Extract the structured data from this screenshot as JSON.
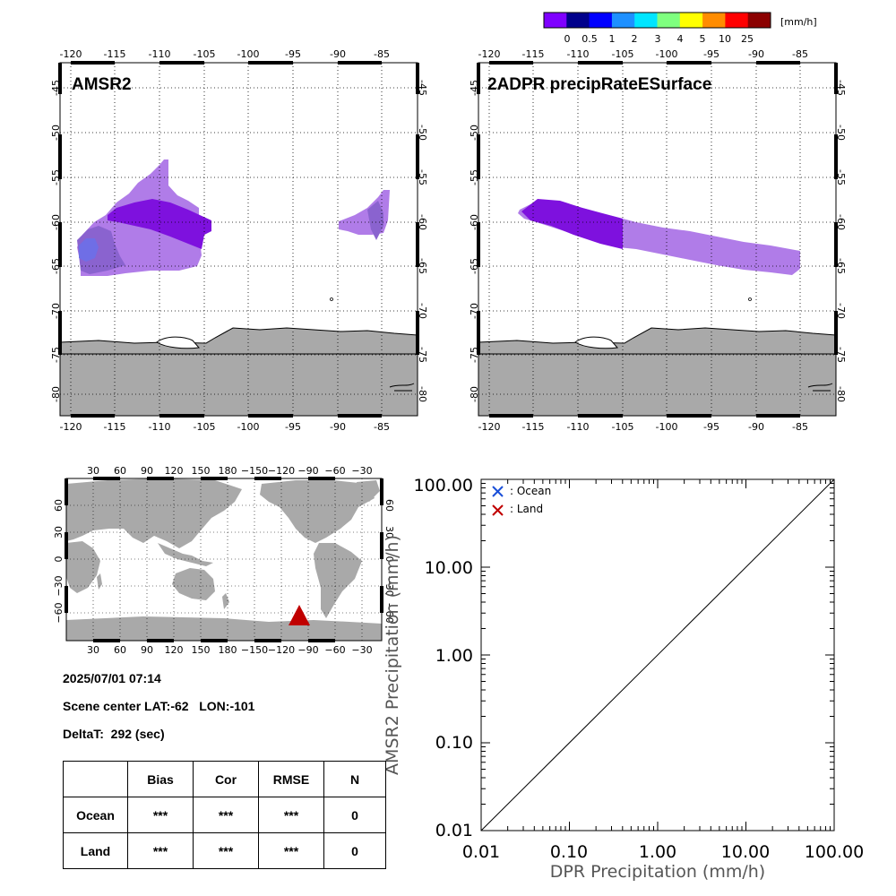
{
  "colorbar": {
    "unit": "[mm/h]",
    "colors": [
      "#7f00ff",
      "#00008b",
      "#0000ff",
      "#1e90ff",
      "#00e5ff",
      "#7fff7f",
      "#ffff00",
      "#ff8c00",
      "#ff0000",
      "#8b0000"
    ],
    "labels": [
      "0",
      "0.5",
      "1",
      "2",
      "3",
      "4",
      "5",
      "10",
      "25"
    ]
  },
  "maps": {
    "lon_ticks": [
      "-120",
      "-115",
      "-110",
      "-105",
      "-100",
      "-95",
      "-90",
      "-85"
    ],
    "lat_ticks": [
      "-45",
      "-50",
      "-55",
      "-60",
      "-65",
      "-70",
      "-75",
      "-80"
    ],
    "land_color": "#a9a9a9",
    "left_title": "AMSR2",
    "right_title": "2ADPR precipRateESurface"
  },
  "world": {
    "top_ticks": [
      "30",
      "60",
      "90",
      "120",
      "150",
      "180",
      "−150",
      "−120",
      "−90",
      "−60",
      "−30"
    ],
    "bottom_ticks": [
      "30",
      "60",
      "90",
      "120",
      "150",
      "180",
      "−150",
      "−120",
      "−90",
      "−60",
      "−30"
    ],
    "left_ticks": [
      "60",
      "30",
      "0",
      "−30",
      "−60"
    ],
    "right_ticks": [
      "60",
      "30",
      "0",
      "−30",
      "−60"
    ],
    "marker_color": "#c00000"
  },
  "info": {
    "datetime": "2025/07/01 07:14",
    "scene_center": "Scene center LAT:-62   LON:-101",
    "deltat": "DeltaT:  292 (sec)"
  },
  "stats_table": {
    "headers": [
      "Bias",
      "Cor",
      "RMSE",
      "N"
    ],
    "rows": [
      {
        "label": "Ocean",
        "bias": "***",
        "cor": "***",
        "rmse": "***",
        "n": "0"
      },
      {
        "label": "Land",
        "bias": "***",
        "cor": "***",
        "rmse": "***",
        "n": "0"
      }
    ]
  },
  "chart_data": {
    "type": "scatter",
    "xlabel": "DPR Precipitation (mm/h)",
    "ylabel": "AMSR2 Precipitation (mm/h)",
    "x_ticks": [
      "0.01",
      "0.10",
      "1.00",
      "10.00",
      "100.00"
    ],
    "y_ticks": [
      "0.01",
      "0.10",
      "1.00",
      "10.00",
      "100.00"
    ],
    "xlim": [
      0.01,
      100
    ],
    "ylim": [
      0.01,
      100
    ],
    "log_scale": true,
    "series": [
      {
        "name": ": Ocean",
        "color": "#1a4fd8",
        "x": [],
        "y": []
      },
      {
        "name": ": Land",
        "color": "#c00000",
        "x": [],
        "y": []
      }
    ],
    "reference_line": "1:1"
  }
}
